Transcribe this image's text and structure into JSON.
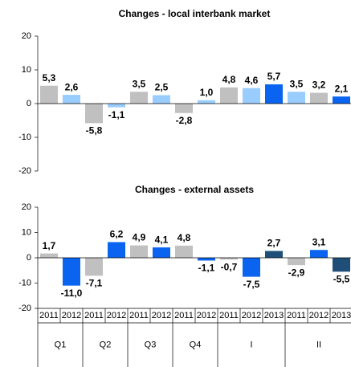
{
  "chart_data": [
    {
      "type": "bar",
      "title": "Changes - local interbank market",
      "values": [
        5.3,
        2.6,
        -5.8,
        -1.1,
        3.5,
        2.5,
        -2.8,
        1.0,
        4.8,
        4.6,
        5.7,
        3.5,
        3.2,
        2.1
      ],
      "value_labels": [
        "5,3",
        "2,6",
        "-5,8",
        "-1,1",
        "3,5",
        "2,5",
        "-2,8",
        "1,0",
        "4,8",
        "4,6",
        "5,7",
        "3,5",
        "3,2",
        "2,1"
      ],
      "colors": [
        "#c0c0c0",
        "#99ccff",
        "#c0c0c0",
        "#99ccff",
        "#c0c0c0",
        "#99ccff",
        "#c0c0c0",
        "#99ccff",
        "#c0c0c0",
        "#99ccff",
        "#0a64f0",
        "#99ccff",
        "#c0c0c0",
        "#0a64f0"
      ],
      "ylim": [
        -20,
        20
      ],
      "yticks": [
        -20,
        -10,
        0,
        10,
        20
      ]
    },
    {
      "type": "bar",
      "title": "Changes - external assets",
      "categories": [
        "2011",
        "2012",
        "2011",
        "2012",
        "2011",
        "2012",
        "2011",
        "2012",
        "2011",
        "2012",
        "2013",
        "2011",
        "2012",
        "2013"
      ],
      "groups": [
        "Q1",
        "Q1",
        "Q2",
        "Q2",
        "Q3",
        "Q3",
        "Q4",
        "Q4",
        "I",
        "I",
        "I",
        "II",
        "II",
        "II"
      ],
      "values": [
        1.7,
        -11.0,
        -7.1,
        6.2,
        4.9,
        4.1,
        4.8,
        -1.1,
        -0.7,
        -7.5,
        2.7,
        -2.9,
        3.1,
        -5.5
      ],
      "value_labels": [
        "1,7",
        "-11,0",
        "-7,1",
        "6,2",
        "4,9",
        "4,1",
        "4,8",
        "-1,1",
        "-0,7",
        "-7,5",
        "2,7",
        "-2,9",
        "3,1",
        "-5,5"
      ],
      "colors": [
        "#c0c0c0",
        "#0a64f0",
        "#c0c0c0",
        "#0a64f0",
        "#c0c0c0",
        "#0a64f0",
        "#c0c0c0",
        "#0a64f0",
        "#c0c0c0",
        "#0a64f0",
        "#1f4e79",
        "#c0c0c0",
        "#0a64f0",
        "#1f4e79"
      ],
      "ylim": [
        -20,
        20
      ],
      "yticks": [
        -20,
        -10,
        0,
        10,
        20
      ]
    }
  ]
}
